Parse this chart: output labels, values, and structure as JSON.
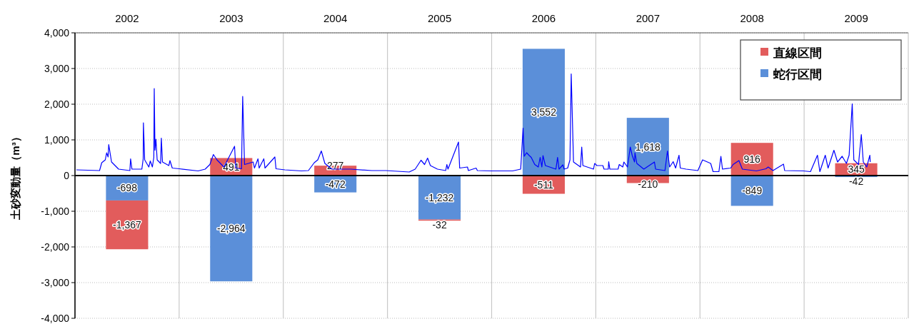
{
  "chart_data": {
    "type": "bar",
    "stacked": true,
    "ylabel": "土砂変動量（m³）",
    "x": [
      2002.5,
      2003.5,
      2004.5,
      2005.5,
      2006.5,
      2007.5,
      2008.5,
      2009.5
    ],
    "xlim": [
      2002,
      2010
    ],
    "xticks": [
      {
        "value": 2002,
        "label": null
      },
      {
        "value": 2002.5,
        "label": "2002"
      },
      {
        "value": 2003,
        "label": null
      },
      {
        "value": 2003.5,
        "label": "2003"
      },
      {
        "value": 2004,
        "label": null
      },
      {
        "value": 2004.5,
        "label": "2004"
      },
      {
        "value": 2005,
        "label": null
      },
      {
        "value": 2005.5,
        "label": "2005"
      },
      {
        "value": 2006,
        "label": null
      },
      {
        "value": 2006.5,
        "label": "2006"
      },
      {
        "value": 2007,
        "label": null
      },
      {
        "value": 2007.5,
        "label": "2007"
      },
      {
        "value": 2008,
        "label": null
      },
      {
        "value": 2008.5,
        "label": "2008"
      },
      {
        "value": 2009,
        "label": null
      },
      {
        "value": 2009.5,
        "label": "2009"
      },
      {
        "value": 2010,
        "label": null
      }
    ],
    "ylim": [
      -4000,
      4000
    ],
    "yticks": [
      {
        "value": -4000,
        "label": "-4,000"
      },
      {
        "value": -3000,
        "label": "-3,000"
      },
      {
        "value": -2000,
        "label": "-2,000"
      },
      {
        "value": -1000,
        "label": "-1,000"
      },
      0,
      {
        "value": 1000,
        "label": "1,000"
      },
      {
        "value": 2000,
        "label": "2,000"
      },
      {
        "value": 3000,
        "label": "3,000"
      },
      {
        "value": 4000,
        "label": "4,000"
      }
    ],
    "grid": true,
    "legend": "top right",
    "marker": "none",
    "series": [
      {
        "name": "蛇行区間",
        "color": "#5b8fd9",
        "values": [
          -698,
          -2964,
          -472,
          -1232,
          3552,
          1618,
          -849,
          -42
        ],
        "value_labels": [
          "-698",
          "-2,964",
          "-472",
          "-1,232",
          "3,552",
          "1,618",
          "-849",
          "-42"
        ]
      },
      {
        "name": "直線区間",
        "color": "#e25c5c",
        "values": [
          -1367,
          491,
          277,
          -32,
          -511,
          -210,
          916,
          345
        ],
        "value_labels": [
          "-1,367",
          "491",
          "277",
          "-32",
          "-511",
          "-210",
          "916",
          "345"
        ]
      },
      {
        "type": "line",
        "color": "#0000ff",
        "line_style": "solid",
        "x": [
          2002.014,
          2002.236,
          2002.257,
          2002.291,
          2002.304,
          2002.318,
          2002.324,
          2002.351,
          2002.419,
          2002.527,
          2002.534,
          2002.547,
          2002.642,
          2002.655,
          2002.657,
          2002.669,
          2002.709,
          2002.723,
          2002.743,
          2002.757,
          2002.761,
          2002.768,
          2002.777,
          2002.789,
          2002.822,
          2002.829,
          2002.84,
          2002.901,
          2002.912,
          2002.934,
          2003.002,
          2003.182,
          2003.25,
          2003.295,
          2003.329,
          2003.363,
          2003.43,
          2003.532,
          2003.543,
          2003.599,
          2003.61,
          2003.628,
          2003.711,
          2003.723,
          2003.757,
          2003.768,
          2003.813,
          2003.824,
          2003.919,
          2003.93,
          2004.016,
          2004.174,
          2004.241,
          2004.297,
          2004.331,
          2004.365,
          2004.399,
          2004.466,
          2004.647,
          2004.849,
          2004.984,
          2005.209,
          2005.266,
          2005.322,
          2005.356,
          2005.385,
          2005.412,
          2005.48,
          2005.559,
          2005.57,
          2005.581,
          2005.682,
          2005.693,
          2005.768,
          2005.777,
          2005.851,
          2005.863,
          2005.998,
          2006.201,
          2006.279,
          2006.302,
          2006.313,
          2006.336,
          2006.358,
          2006.38,
          2006.414,
          2006.448,
          2006.466,
          2006.482,
          2006.493,
          2006.516,
          2006.617,
          2006.633,
          2006.647,
          2006.684,
          2006.696,
          2006.73,
          2006.752,
          2006.764,
          2006.786,
          2006.853,
          2006.865,
          2006.876,
          2006.978,
          2006.989,
          2007.011,
          2007.068,
          2007.079,
          2007.12,
          2007.124,
          2007.135,
          2007.214,
          2007.225,
          2007.259,
          2007.27,
          2007.304,
          2007.331,
          2007.349,
          2007.372,
          2007.376,
          2007.394,
          2007.461,
          2007.563,
          2007.574,
          2007.664,
          2007.688,
          2007.709,
          2007.743,
          2007.766,
          2007.799,
          2007.811,
          2007.867,
          2007.98,
          2008.025,
          2008.103,
          2008.126,
          2008.182,
          2008.201,
          2008.216,
          2008.295,
          2008.318,
          2008.374,
          2008.407,
          2008.542,
          2008.633,
          2008.655,
          2008.701,
          2008.802,
          2008.813,
          2008.993,
          2009.061,
          2009.128,
          2009.151,
          2009.203,
          2009.23,
          2009.286,
          2009.321,
          2009.365,
          2009.406,
          2009.432,
          2009.462,
          2009.477,
          2009.522,
          2009.549,
          2009.568,
          2009.601,
          2009.631,
          2009.635
        ],
        "values": [
          160,
          140,
          360,
          440,
          640,
          520,
          870,
          380,
          180,
          140,
          470,
          180,
          180,
          470,
          1480,
          440,
          240,
          410,
          240,
          510,
          2440,
          710,
          1020,
          440,
          340,
          1050,
          380,
          280,
          420,
          210,
          190,
          130,
          180,
          310,
          590,
          440,
          240,
          820,
          210,
          190,
          2220,
          310,
          380,
          210,
          470,
          210,
          470,
          210,
          520,
          190,
          160,
          130,
          140,
          360,
          440,
          690,
          340,
          180,
          180,
          140,
          140,
          100,
          180,
          430,
          310,
          490,
          280,
          180,
          140,
          310,
          180,
          940,
          210,
          240,
          140,
          210,
          140,
          130,
          130,
          180,
          1330,
          540,
          640,
          570,
          510,
          310,
          240,
          510,
          240,
          560,
          280,
          180,
          510,
          180,
          300,
          180,
          210,
          440,
          2850,
          380,
          240,
          800,
          280,
          180,
          340,
          280,
          280,
          180,
          180,
          390,
          180,
          180,
          310,
          240,
          380,
          240,
          800,
          570,
          380,
          640,
          340,
          180,
          380,
          180,
          140,
          690,
          240,
          390,
          210,
          570,
          210,
          180,
          140,
          440,
          340,
          110,
          110,
          540,
          180,
          210,
          310,
          420,
          180,
          130,
          190,
          240,
          140,
          320,
          140,
          130,
          110,
          570,
          110,
          570,
          210,
          710,
          380,
          540,
          340,
          570,
          2010,
          440,
          310,
          1150,
          380,
          240,
          570,
          380
        ]
      }
    ]
  }
}
